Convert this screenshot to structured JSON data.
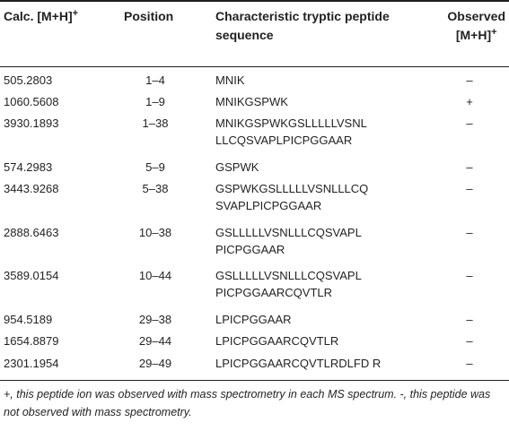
{
  "table": {
    "headers": {
      "calc": "Calc. [M+H]",
      "calc_sup": "+",
      "position": "Position",
      "sequence_line1": "Characteristic tryptic peptide",
      "sequence_line2": "sequence",
      "observed_line1": "Observed",
      "observed_line2": "[M+H]",
      "observed_sup": "+"
    },
    "rows": [
      {
        "calc": "505.2803",
        "position": "1–4",
        "sequence": "MNIK",
        "observed": "–"
      },
      {
        "calc": "1060.5608",
        "position": "1–9",
        "sequence": "MNIKGSPWK",
        "observed": "+"
      },
      {
        "calc": "3930.1893",
        "position": "1–38",
        "sequence": "MNIKGSPWKGSLLLLLVSNL\nLLCQSVAPLPICPGGAAR",
        "observed": "–"
      },
      {
        "calc": "574.2983",
        "position": "5–9",
        "sequence": "GSPWK",
        "observed": "–"
      },
      {
        "calc": "3443.9268",
        "position": "5–38",
        "sequence": "GSPWKGSLLLLLVSNLLLCQ\nSVAPLPICPGGAAR",
        "observed": "–"
      },
      {
        "calc": "2888.6463",
        "position": "10–38",
        "sequence": "GSLLLLLVSNLLLCQSVAPL\nPICPGGAAR",
        "observed": "–"
      },
      {
        "calc": "3589.0154",
        "position": "10–44",
        "sequence": "GSLLLLLVSNLLLCQSVAPL\nPICPGGAARCQVTLR",
        "observed": "–"
      },
      {
        "calc": "954.5189",
        "position": "29–38",
        "sequence": "LPICPGGAAR",
        "observed": "–"
      },
      {
        "calc": "1654.8879",
        "position": "29–44",
        "sequence": "LPICPGGAARCQVTLR",
        "observed": "–"
      },
      {
        "calc": "2301.1954",
        "position": "29–49",
        "sequence": "LPICPGGAARCQVTLRDLFD R",
        "observed": "–"
      }
    ]
  },
  "footnote": "+, this peptide ion was observed with mass spectrometry in each MS spectrum. -, this peptide was not observed with mass spectrometry."
}
